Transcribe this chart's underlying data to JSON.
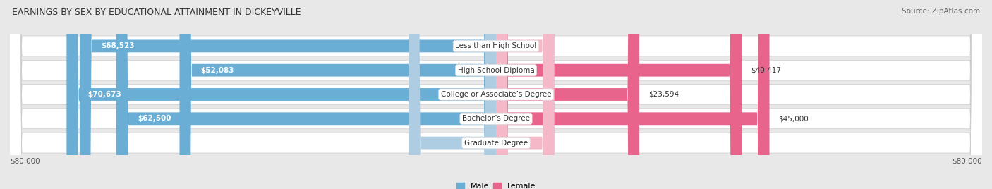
{
  "title": "EARNINGS BY SEX BY EDUCATIONAL ATTAINMENT IN DICKEYVILLE",
  "source": "Source: ZipAtlas.com",
  "categories": [
    "Less than High School",
    "High School Diploma",
    "College or Associate’s Degree",
    "Bachelor’s Degree",
    "Graduate Degree"
  ],
  "male_values": [
    68523,
    52083,
    70673,
    62500,
    0
  ],
  "female_values": [
    0,
    40417,
    23594,
    45000,
    0
  ],
  "male_color": "#6aaed6",
  "female_color": "#e8648c",
  "male_ghost_color": "#aecde3",
  "female_ghost_color": "#f5b8c8",
  "male_ghost_values": [
    0,
    0,
    0,
    0,
    14400
  ],
  "female_ghost_values": [
    9600,
    0,
    0,
    0,
    9600
  ],
  "bg_color": "#e8e8e8",
  "row_color_odd": "#f2f2f2",
  "row_color_even": "#e8e8e8",
  "max_value": 80000,
  "axis_label_left": "$80,000",
  "axis_label_right": "$80,000",
  "title_fontsize": 9.0,
  "source_fontsize": 7.5,
  "label_fontsize": 7.5,
  "category_fontsize": 7.5
}
